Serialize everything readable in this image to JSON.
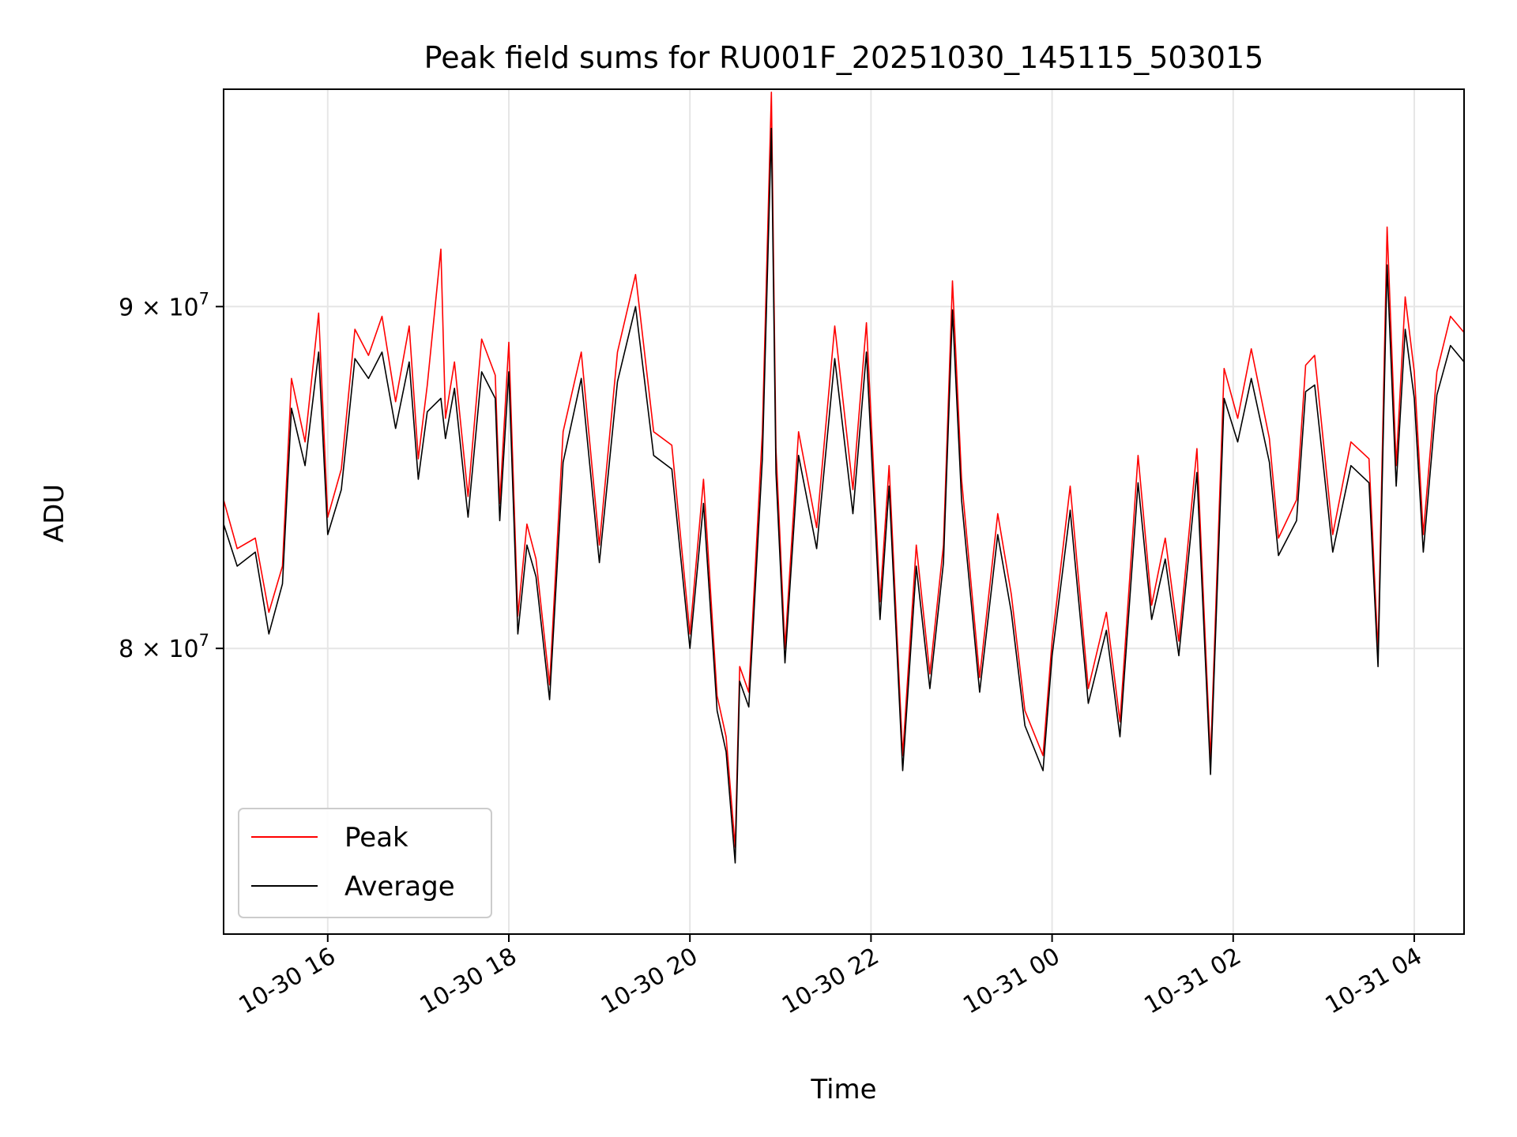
{
  "chart_data": {
    "type": "line",
    "title": "Peak field sums for RU001F_20251030_145115_503015",
    "xlabel": "Time",
    "ylabel": "ADU",
    "yscale": "log",
    "xlim_hours": [
      14.85,
      28.55
    ],
    "ylim": [
      72500000,
      97000000
    ],
    "grid": true,
    "legend_position": "lower-left",
    "x_ticks": [
      {
        "hour": 16,
        "label": "10-30 16"
      },
      {
        "hour": 18,
        "label": "10-30 18"
      },
      {
        "hour": 20,
        "label": "10-30 20"
      },
      {
        "hour": 22,
        "label": "10-30 22"
      },
      {
        "hour": 24,
        "label": "10-31 00"
      },
      {
        "hour": 26,
        "label": "10-31 02"
      },
      {
        "hour": 28,
        "label": "10-31 04"
      }
    ],
    "y_ticks": [
      {
        "value": 80000000,
        "label_mant": "8",
        "label_base": "10",
        "label_exp": "7"
      },
      {
        "value": 90000000,
        "label_mant": "9",
        "label_base": "10",
        "label_exp": "7"
      }
    ],
    "x_hours": [
      14.85,
      15.0,
      15.2,
      15.35,
      15.5,
      15.6,
      15.75,
      15.9,
      16.0,
      16.15,
      16.3,
      16.45,
      16.6,
      16.75,
      16.9,
      17.0,
      17.1,
      17.25,
      17.3,
      17.4,
      17.55,
      17.7,
      17.85,
      17.9,
      18.0,
      18.1,
      18.2,
      18.3,
      18.45,
      18.6,
      18.8,
      19.0,
      19.2,
      19.4,
      19.6,
      19.8,
      20.0,
      20.15,
      20.3,
      20.4,
      20.5,
      20.55,
      20.65,
      20.8,
      20.9,
      20.95,
      21.05,
      21.2,
      21.4,
      21.6,
      21.8,
      21.95,
      22.1,
      22.2,
      22.35,
      22.5,
      22.65,
      22.8,
      22.9,
      23.0,
      23.2,
      23.4,
      23.55,
      23.7,
      23.9,
      24.0,
      24.2,
      24.4,
      24.6,
      24.75,
      24.95,
      25.1,
      25.25,
      25.4,
      25.6,
      25.75,
      25.9,
      26.05,
      26.2,
      26.4,
      26.5,
      26.7,
      26.8,
      26.9,
      27.1,
      27.3,
      27.5,
      27.6,
      27.7,
      27.8,
      27.9,
      28.0,
      28.1,
      28.25,
      28.4,
      28.55
    ],
    "series": [
      {
        "name": "Peak",
        "color": "#ff0000",
        "values": [
          84200000,
          82800000,
          83100000,
          81000000,
          82300000,
          87800000,
          85900000,
          89800000,
          83700000,
          85100000,
          89300000,
          88500000,
          89700000,
          87100000,
          89400000,
          85400000,
          87600000,
          91800000,
          86600000,
          88300000,
          84300000,
          89000000,
          87900000,
          84100000,
          88900000,
          80900000,
          83500000,
          82500000,
          79000000,
          86200000,
          88600000,
          82900000,
          88600000,
          91000000,
          86200000,
          85800000,
          80400000,
          84800000,
          78700000,
          77600000,
          74700000,
          79500000,
          78800000,
          86200000,
          96900000,
          85700000,
          80000000,
          86200000,
          83400000,
          89400000,
          84500000,
          89500000,
          81300000,
          85200000,
          77100000,
          82900000,
          79300000,
          82900000,
          90800000,
          84800000,
          79200000,
          83800000,
          81500000,
          78300000,
          77100000,
          80200000,
          84600000,
          78900000,
          81000000,
          78000000,
          85500000,
          81200000,
          83100000,
          80200000,
          85700000,
          77000000,
          88100000,
          86600000,
          88700000,
          86000000,
          83100000,
          84200000,
          88200000,
          88500000,
          83200000,
          85900000,
          85400000,
          79900000,
          92500000,
          85200000,
          90300000,
          88000000,
          83200000,
          88000000,
          89700000,
          89200000
        ]
      },
      {
        "name": "Average",
        "color": "#000000",
        "values": [
          83500000,
          82300000,
          82700000,
          80400000,
          81800000,
          86900000,
          85200000,
          88600000,
          83200000,
          84500000,
          88400000,
          87800000,
          88600000,
          86300000,
          88300000,
          84800000,
          86800000,
          87200000,
          86000000,
          87500000,
          83700000,
          88000000,
          87200000,
          83600000,
          88000000,
          80400000,
          82900000,
          82000000,
          78600000,
          85300000,
          87800000,
          82400000,
          87700000,
          90000000,
          85500000,
          85100000,
          80000000,
          84100000,
          78300000,
          77200000,
          74300000,
          79100000,
          78400000,
          85400000,
          95700000,
          85000000,
          79600000,
          85500000,
          82800000,
          88400000,
          83800000,
          88600000,
          80800000,
          84600000,
          76700000,
          82300000,
          78900000,
          82400000,
          89900000,
          84200000,
          78800000,
          83200000,
          81000000,
          77900000,
          76700000,
          79800000,
          83900000,
          78500000,
          80500000,
          77600000,
          84700000,
          80800000,
          82500000,
          79800000,
          85000000,
          76600000,
          87200000,
          85900000,
          87800000,
          85300000,
          82600000,
          83600000,
          87400000,
          87600000,
          82700000,
          85200000,
          84700000,
          79500000,
          91300000,
          84600000,
          89300000,
          87200000,
          82700000,
          87300000,
          88800000,
          88300000
        ]
      }
    ]
  }
}
